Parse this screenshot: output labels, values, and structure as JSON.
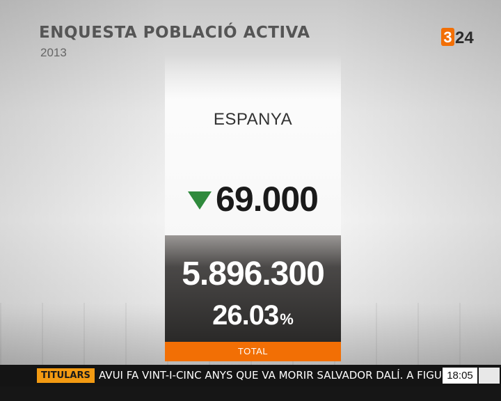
{
  "header": {
    "title": "ENQUESTA POBLACIÓ ACTIVA",
    "year": "2013"
  },
  "logo": {
    "digit": "3",
    "number": "24",
    "brand_color": "#f26f05"
  },
  "card": {
    "region": "ESPANYA",
    "change_direction": "down",
    "change_value": "69.000",
    "total_value": "5.896.300",
    "percent_value": "26.03",
    "percent_sign": "%",
    "total_label": "TOTAL"
  },
  "ticker": {
    "label": "TITULARS",
    "text": "AVUI FA VINT-I-CINC ANYS QUE VA MORIR SALVADOR DALÍ. A FIGUERES, UN HOM",
    "time": "18:05"
  },
  "colors": {
    "accent_orange": "#f26f05",
    "down_green": "#2f8a3c",
    "ticker_label_bg": "#f29a12"
  }
}
